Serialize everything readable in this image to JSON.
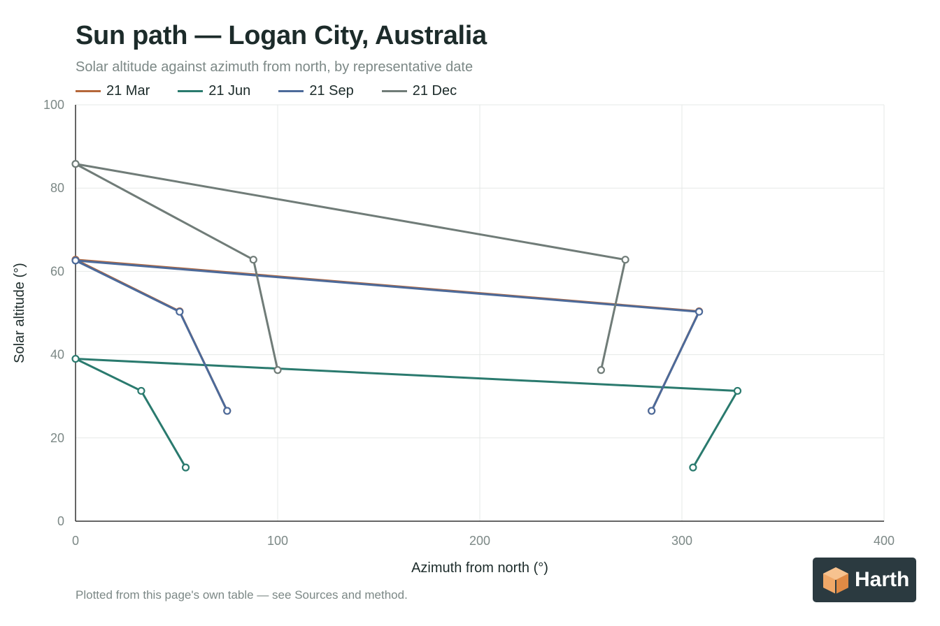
{
  "title": "Sun path — Logan City, Australia",
  "subtitle": "Solar altitude against azimuth from north, by representative date",
  "footnote": "Plotted from this page's own table — see Sources and method.",
  "logo": {
    "text": "Harth",
    "icon": "cube-logo-icon"
  },
  "colors": {
    "title": "#1c2b2a",
    "muted": "#7c8886",
    "grid": "#e6e8e7",
    "axis": "#333333"
  },
  "chart_data": {
    "type": "line",
    "xlabel": "Azimuth from north (°)",
    "ylabel": "Solar altitude (°)",
    "xlim": [
      0,
      400
    ],
    "ylim": [
      0,
      100
    ],
    "xticks": [
      0,
      100,
      200,
      300,
      400
    ],
    "yticks": [
      0,
      20,
      40,
      60,
      80,
      100
    ],
    "grid": true,
    "legend_position": "top-left",
    "series": [
      {
        "name": "21 Mar",
        "color": "#b5673a",
        "points": [
          [
            75,
            26.5
          ],
          [
            51.5,
            50.4
          ],
          [
            0,
            62.8
          ],
          [
            308.5,
            50.4
          ],
          [
            285,
            26.5
          ]
        ]
      },
      {
        "name": "21 Jun",
        "color": "#2a7a6e",
        "points": [
          [
            54.5,
            12.9
          ],
          [
            32.5,
            31.3
          ],
          [
            0,
            39
          ],
          [
            327.5,
            31.3
          ],
          [
            305.5,
            12.9
          ]
        ]
      },
      {
        "name": "21 Sep",
        "color": "#4c6a9a",
        "points": [
          [
            75,
            26.5
          ],
          [
            51.5,
            50.3
          ],
          [
            0,
            62.6
          ],
          [
            308.5,
            50.3
          ],
          [
            285,
            26.5
          ]
        ]
      },
      {
        "name": "21 Dec",
        "color": "#707c78",
        "points": [
          [
            100,
            36.3
          ],
          [
            88,
            62.8
          ],
          [
            0,
            85.8
          ],
          [
            272,
            62.8
          ],
          [
            260,
            36.3
          ]
        ]
      }
    ]
  }
}
